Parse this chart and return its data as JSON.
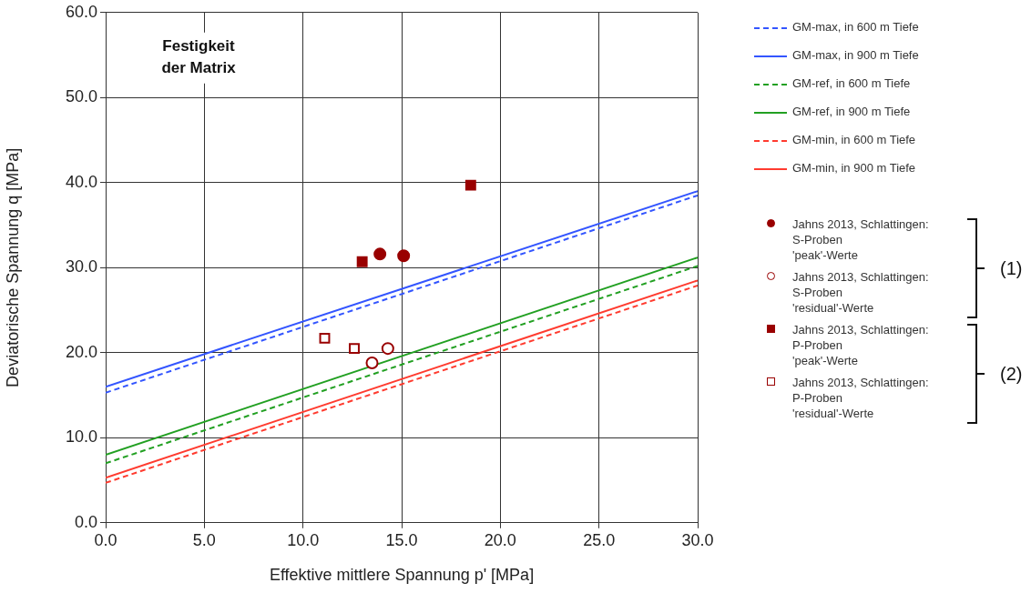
{
  "chart_data": {
    "type": "line",
    "xlabel": "Effektive mittlere Spannung p' [MPa]",
    "ylabel": "Deviatorische Spannung q [MPa]",
    "xlim": [
      0,
      30
    ],
    "xticks": [
      {
        "value": 0,
        "label": "0.0"
      },
      {
        "value": 5,
        "label": "5.0"
      },
      {
        "value": 10,
        "label": "10.0"
      },
      {
        "value": 15,
        "label": "15.0"
      },
      {
        "value": 20,
        "label": "20.0"
      },
      {
        "value": 25,
        "label": "25.0"
      },
      {
        "value": 30,
        "label": "30.0"
      }
    ],
    "ylim": [
      0,
      60
    ],
    "yticks": [
      {
        "value": 0,
        "label": "0.0"
      },
      {
        "value": 10,
        "label": "10.0"
      },
      {
        "value": 20,
        "label": "20.0"
      },
      {
        "value": 30,
        "label": "30.0"
      },
      {
        "value": 40,
        "label": "40.0"
      },
      {
        "value": 50,
        "label": "50.0"
      },
      {
        "value": 60,
        "label": "60.0"
      }
    ],
    "grid": true,
    "legend": "right",
    "annotations": [
      "Festigkeit der Matrix",
      "(1)",
      "(2)"
    ],
    "series": [
      {
        "name": "GM-max, in 600 m Tiefe",
        "color": "#3355ff",
        "line_style": "dashed",
        "marker": "none",
        "x": [
          0,
          30
        ],
        "values": [
          15.3,
          38.5
        ]
      },
      {
        "name": "GM-max, in 900 m Tiefe",
        "color": "#3355ff",
        "line_style": "solid",
        "marker": "none",
        "x": [
          0,
          30
        ],
        "values": [
          16.0,
          39.0
        ]
      },
      {
        "name": "GM-ref, in 600 m Tiefe",
        "color": "#22a022",
        "line_style": "dashed",
        "marker": "none",
        "x": [
          0,
          30
        ],
        "values": [
          7.0,
          30.2
        ]
      },
      {
        "name": "GM-ref, in 900 m Tiefe",
        "color": "#22a022",
        "line_style": "solid",
        "marker": "none",
        "x": [
          0,
          30
        ],
        "values": [
          8.0,
          31.2
        ]
      },
      {
        "name": "GM-min, in 600 m Tiefe",
        "color": "#ff3b2f",
        "line_style": "dashed",
        "marker": "none",
        "x": [
          0,
          30
        ],
        "values": [
          4.7,
          27.9
        ]
      },
      {
        "name": "GM-min, in 900 m Tiefe",
        "color": "#ff3b2f",
        "line_style": "solid",
        "marker": "none",
        "x": [
          0,
          30
        ],
        "values": [
          5.3,
          28.5
        ]
      },
      {
        "name": "Jahns 2013, Schlattingen:\nS-Proben\n'peak'-Werte",
        "type": "scatter",
        "color": "#990000",
        "marker": "circle",
        "x": [
          13.9,
          15.1
        ],
        "values": [
          31.6,
          31.4
        ]
      },
      {
        "name": "Jahns 2013, Schlattingen:\nS-Proben\n'residual'-Werte",
        "type": "scatter",
        "color": "#990000",
        "marker": "circle-open",
        "x": [
          13.5,
          14.3
        ],
        "values": [
          18.8,
          20.5
        ]
      },
      {
        "name": "Jahns 2013, Schlattingen:\nP-Proben\n'peak'-Werte",
        "type": "scatter",
        "color": "#990000",
        "marker": "square",
        "x": [
          13.0,
          18.5
        ],
        "values": [
          30.7,
          39.7
        ]
      },
      {
        "name": "Jahns 2013, Schlattingen:\nP-Proben\n'residual'-Werte",
        "type": "scatter",
        "color": "#990000",
        "marker": "square-open",
        "x": [
          11.1,
          12.6
        ],
        "values": [
          21.7,
          20.5
        ]
      }
    ]
  }
}
